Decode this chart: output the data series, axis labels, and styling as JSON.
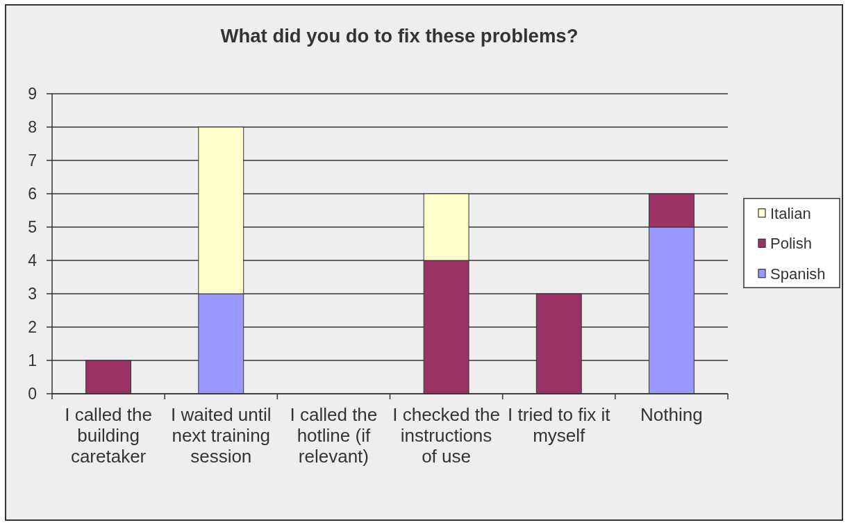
{
  "chart_data": {
    "type": "bar",
    "title": "What did you do to fix these problems?",
    "categories": [
      "I called the building caretaker",
      "I waited until next training session",
      "I called the hotline (if relevant)",
      "I checked the instructions of use",
      "I tried to fix it myself",
      "Nothing"
    ],
    "series": [
      {
        "name": "Spanish",
        "color": "#9999ff",
        "values": [
          0,
          3,
          0,
          0,
          0,
          5
        ]
      },
      {
        "name": "Polish",
        "color": "#993366",
        "values": [
          1,
          0,
          0,
          4,
          3,
          1
        ]
      },
      {
        "name": "Italian",
        "color": "#ffffcc",
        "values": [
          0,
          5,
          0,
          2,
          0,
          0
        ]
      }
    ],
    "stacked": true,
    "ylim": [
      0,
      9
    ],
    "yticks": [
      0,
      1,
      2,
      3,
      4,
      5,
      6,
      7,
      8,
      9
    ],
    "grid": "y",
    "legend": "right"
  }
}
